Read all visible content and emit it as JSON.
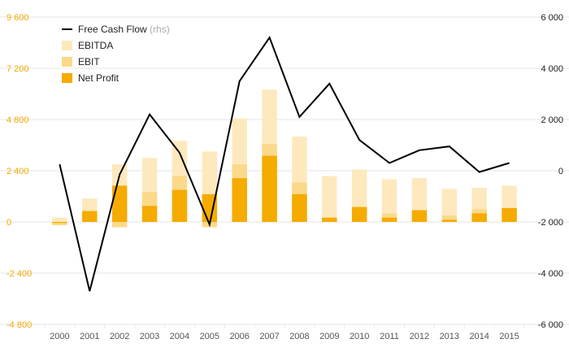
{
  "chart_data": {
    "type": "bar",
    "categories": [
      "2000",
      "2001",
      "2002",
      "2003",
      "2004",
      "2005",
      "2006",
      "2007",
      "2008",
      "2009",
      "2010",
      "2011",
      "2012",
      "2013",
      "2014",
      "2015"
    ],
    "series": [
      {
        "name": "EBITDA",
        "type": "bar",
        "axis": "left",
        "color": "#fde9bd",
        "values": [
          200,
          1100,
          2700,
          3000,
          3800,
          3300,
          4850,
          6200,
          4000,
          2150,
          2450,
          2000,
          2050,
          1550,
          1600,
          1700
        ]
      },
      {
        "name": "EBIT",
        "type": "bar",
        "axis": "left",
        "color": "#fbd98a",
        "values": [
          -150,
          550,
          -250,
          1400,
          2150,
          -250,
          2700,
          3650,
          1850,
          200,
          700,
          400,
          50,
          300,
          600,
          650
        ]
      },
      {
        "name": "Net Profit",
        "type": "bar",
        "axis": "left",
        "color": "#f5ab00",
        "values": [
          -50,
          500,
          1700,
          750,
          1500,
          1300,
          2050,
          3100,
          1300,
          200,
          700,
          200,
          550,
          100,
          400,
          650
        ]
      },
      {
        "name": "Free Cash Flow",
        "suffix": "(rhs)",
        "type": "line",
        "axis": "right",
        "color": "#000000",
        "values": [
          250,
          -4700,
          -150,
          2200,
          700,
          -2100,
          3500,
          5200,
          2100,
          3400,
          1200,
          300,
          800,
          950,
          -50,
          300
        ]
      }
    ],
    "y_left": {
      "min": -4800,
      "max": 9600,
      "ticks": [
        -4800,
        -2400,
        0,
        2400,
        4800,
        7200,
        9600
      ],
      "tick_labels": [
        "-4 800",
        "-2 400",
        "0",
        "2 400",
        "4 800",
        "7 200",
        "9 600"
      ],
      "color": "#f2a900"
    },
    "y_right": {
      "min": -6000,
      "max": 6000,
      "ticks": [
        -6000,
        -4000,
        -2000,
        0,
        2000,
        4000,
        6000
      ],
      "tick_labels": [
        "-6 000",
        "-4 000",
        "-2 000",
        "0",
        "2 000",
        "4 000",
        "6 000"
      ],
      "color": "#222222"
    },
    "legend": {
      "position": "top-left",
      "items": [
        {
          "label": "Free Cash Flow",
          "suffix": "(rhs)",
          "marker": "line",
          "color": "#000000"
        },
        {
          "label": "EBITDA",
          "marker": "square",
          "color": "#fde9bd"
        },
        {
          "label": "EBIT",
          "marker": "square",
          "color": "#fbd98a"
        },
        {
          "label": "Net Profit",
          "marker": "square",
          "color": "#f5ab00"
        }
      ]
    },
    "grid": true,
    "title": "",
    "xlabel": "",
    "ylabel": ""
  }
}
